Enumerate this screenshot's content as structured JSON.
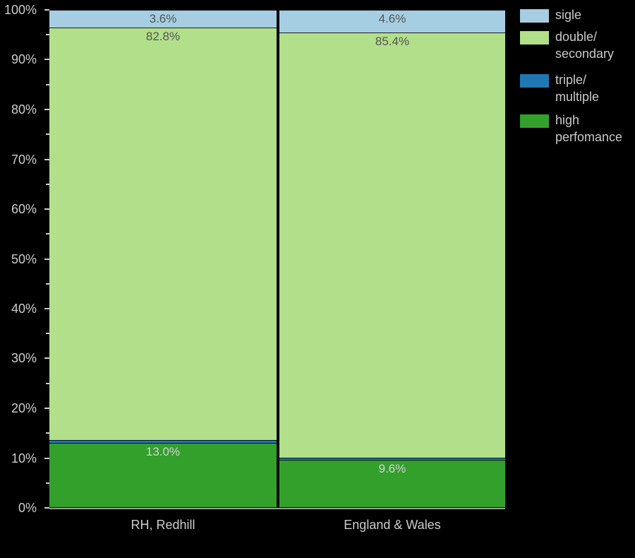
{
  "chart_data": {
    "type": "bar",
    "stacked": true,
    "percent_stacked": true,
    "title": "",
    "xlabel": "",
    "ylabel": "",
    "grid": false,
    "categories": [
      "RH, Redhill",
      "England & Wales"
    ],
    "series": [
      {
        "name": "sigle",
        "color": "#a6cee3",
        "label_color": "#545454",
        "values": [
          3.6,
          4.6
        ]
      },
      {
        "name": "double/secondary",
        "color": "#b2df8a",
        "label_color": "#545454",
        "values": [
          82.8,
          85.4
        ]
      },
      {
        "name": "triple/multiple",
        "color": "#1f78b4",
        "label_color": "#d2d2d2",
        "values": [
          0.6,
          0.4
        ]
      },
      {
        "name": "high perfomance",
        "color": "#33a02c",
        "label_color": "#d2d2d2",
        "values": [
          13.0,
          9.6
        ]
      }
    ],
    "bar_value_labels": [
      [
        "3.6%",
        "82.8%",
        "",
        "13.0%"
      ],
      [
        "4.6%",
        "85.4%",
        "",
        "9.6%"
      ]
    ],
    "y_axis": {
      "min": 0,
      "max": 100,
      "major_step": 10,
      "minor_step": 5,
      "tick_labels": [
        "0%",
        "10%",
        "20%",
        "30%",
        "40%",
        "50%",
        "60%",
        "70%",
        "80%",
        "90%",
        "100%"
      ]
    },
    "legend": {
      "position": "upper-right-outside",
      "items": [
        {
          "label": "sigle",
          "color": "#a6cee3"
        },
        {
          "label": "double/\nsecondary",
          "color": "#b2df8a"
        },
        {
          "label": "triple/\nmultiple",
          "color": "#1f78b4"
        },
        {
          "label": "high\nperfomance",
          "color": "#33a02c"
        }
      ]
    }
  },
  "colors": {
    "background": "#000000",
    "axis_text": "#cccccc",
    "legend_text": "#c9c9c9",
    "tick": "#cccccc",
    "bottom_spine": "#9e9e9e"
  }
}
